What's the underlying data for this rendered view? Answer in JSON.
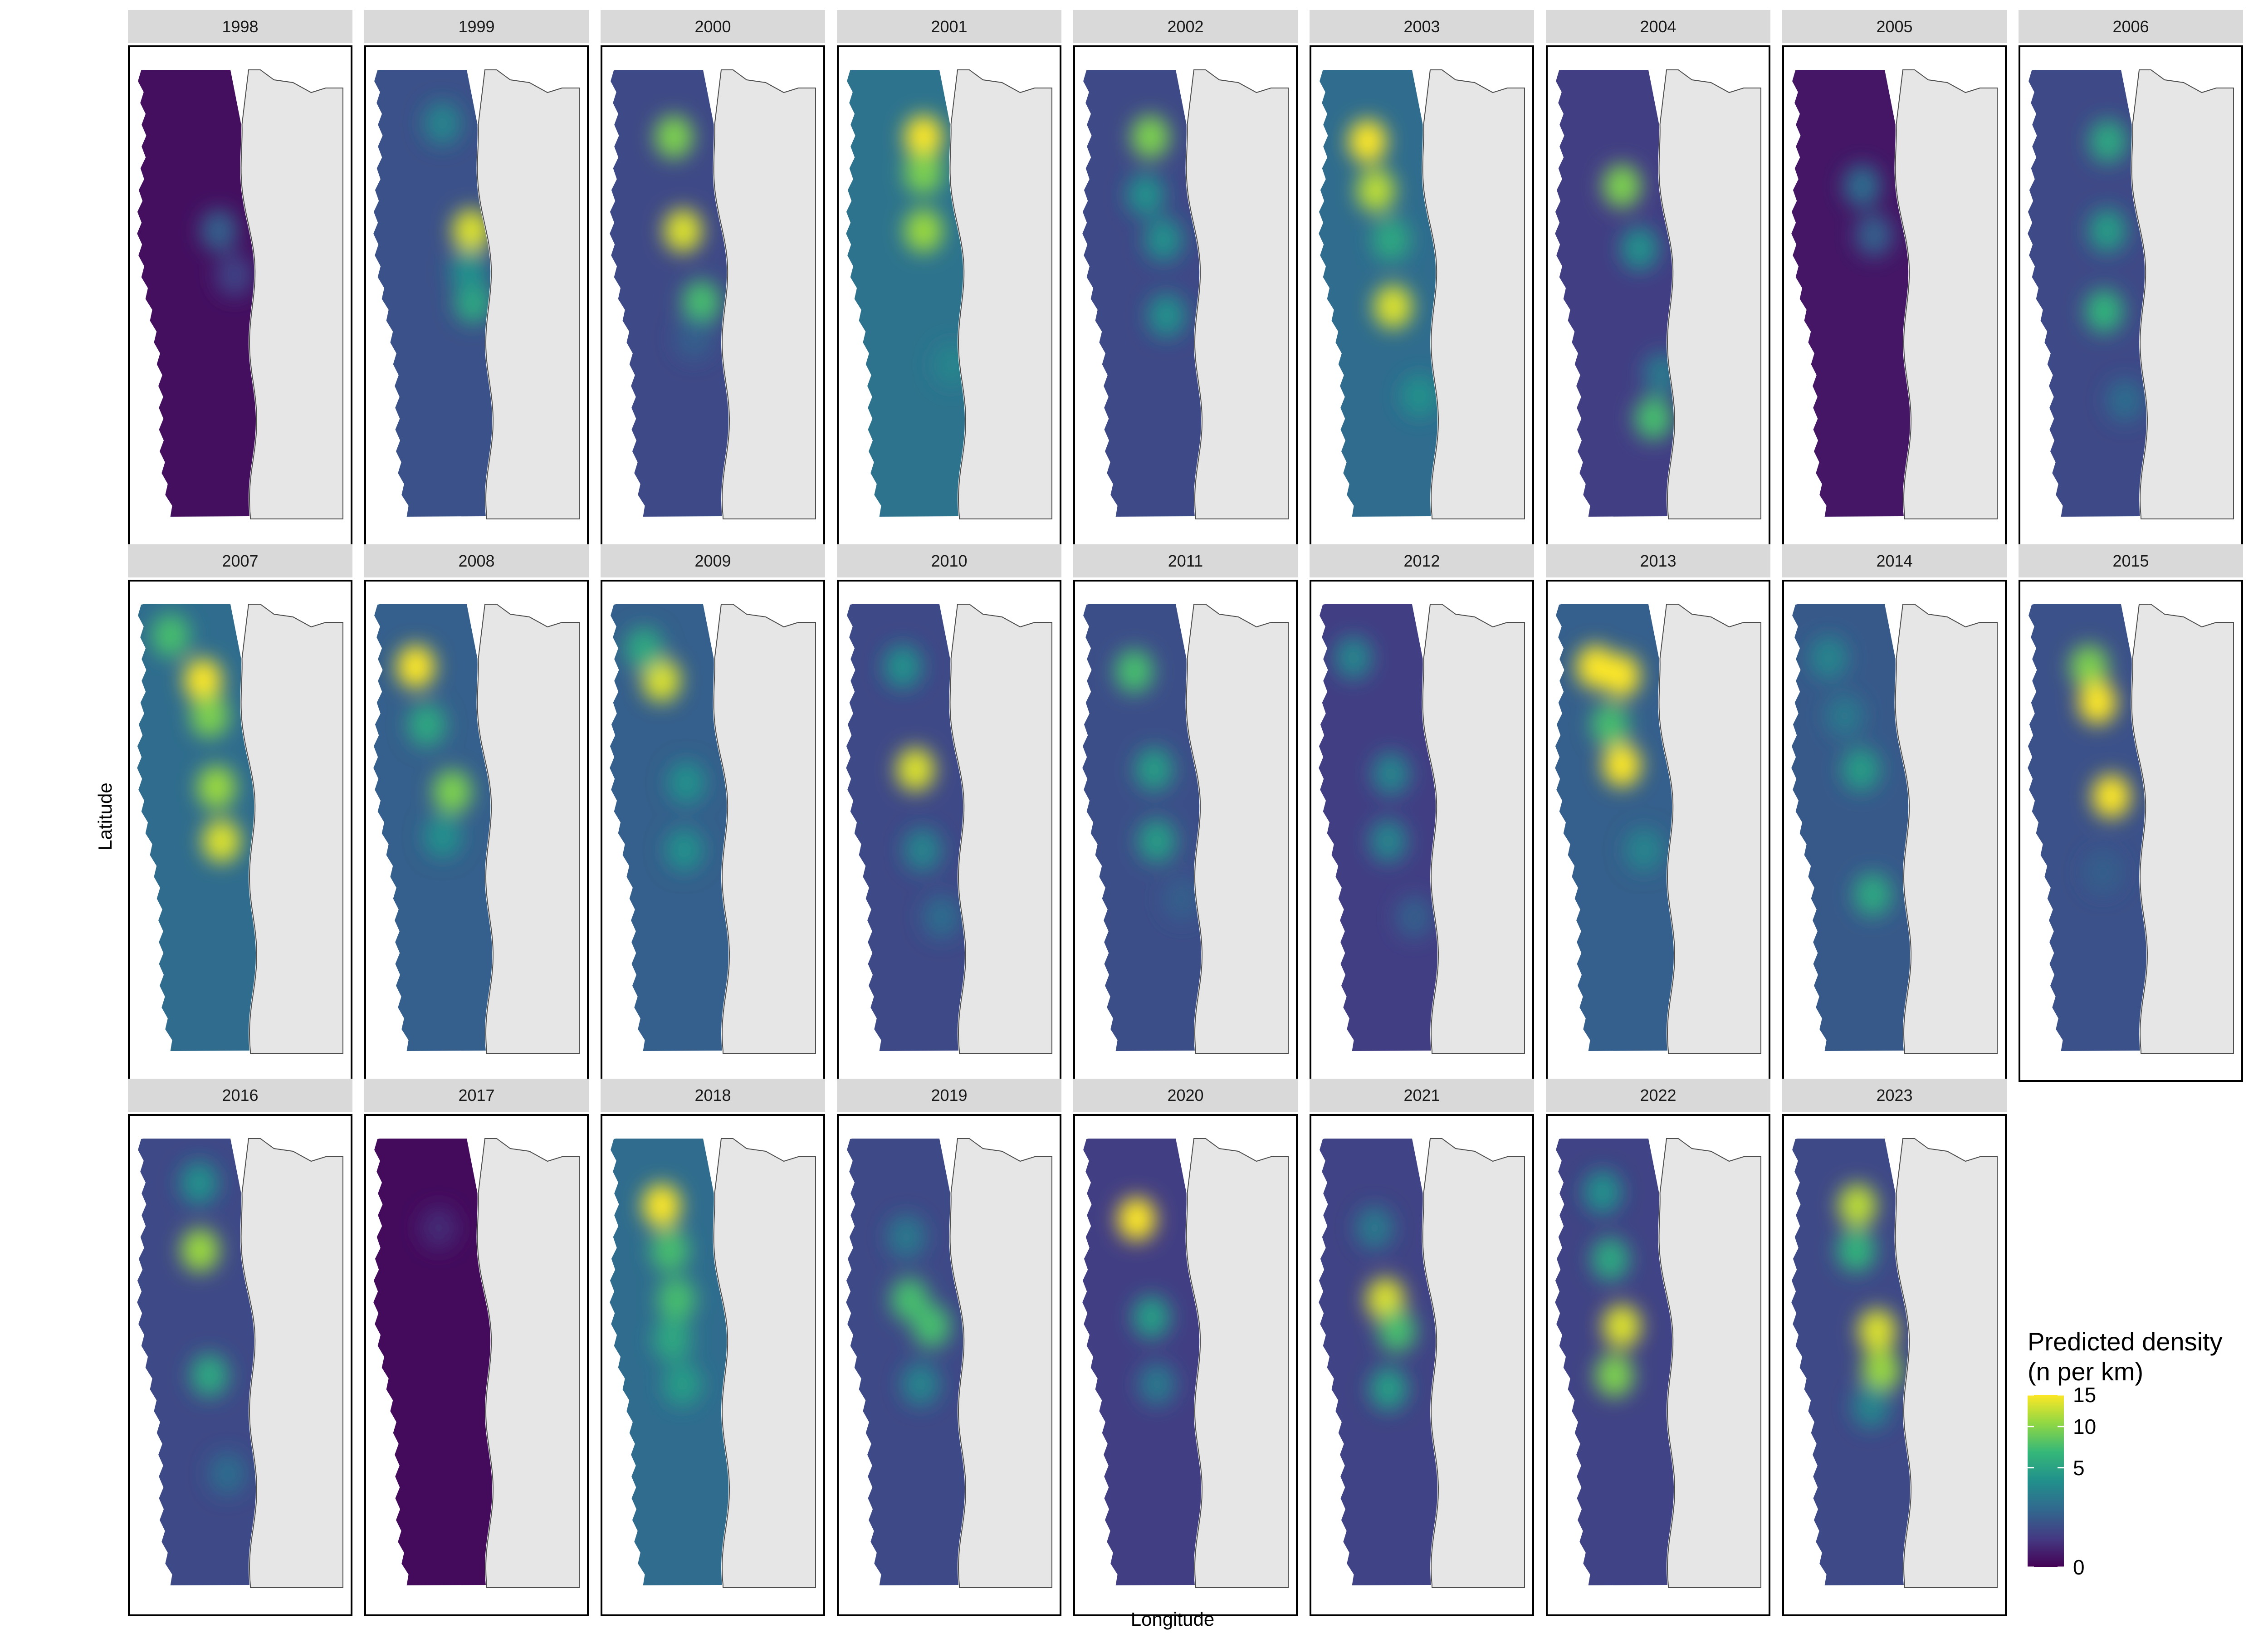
{
  "figure": {
    "x_axis_title": "Longitude",
    "y_axis_title": "Latitude"
  },
  "legend": {
    "title_lines": [
      "Predicted density",
      "(n per km)"
    ],
    "labels": [
      "15",
      "10",
      "5",
      "0"
    ],
    "label_values": [
      15,
      10,
      5,
      0
    ],
    "range": [
      0,
      15
    ],
    "colors": [
      "#440154",
      "#443a83",
      "#31688e",
      "#21908c",
      "#35b779",
      "#8fd744",
      "#fde725"
    ]
  },
  "map_style": {
    "land_fill": "#e6e6e6",
    "coastline": "#4d4d4d",
    "panel_strip_fill": "#d9d9d9"
  },
  "panels": [
    {
      "year": "1998",
      "background_level": 0.04,
      "hotspots": [
        {
          "lat_pos": 0.36,
          "lon_pos": 0.72,
          "intensity": 0.3
        },
        {
          "lat_pos": 0.46,
          "lon_pos": 0.82,
          "intensity": 0.2
        }
      ]
    },
    {
      "year": "1999",
      "background_level": 0.25,
      "hotspots": [
        {
          "lat_pos": 0.36,
          "lon_pos": 0.87,
          "intensity": 0.95
        },
        {
          "lat_pos": 0.52,
          "lon_pos": 0.85,
          "intensity": 0.6
        },
        {
          "lat_pos": 0.12,
          "lon_pos": 0.7,
          "intensity": 0.45
        },
        {
          "lat_pos": 0.45,
          "lon_pos": 0.8,
          "intensity": 0.5
        }
      ]
    },
    {
      "year": "2000",
      "background_level": 0.22,
      "hotspots": [
        {
          "lat_pos": 0.15,
          "lon_pos": 0.58,
          "intensity": 0.8
        },
        {
          "lat_pos": 0.36,
          "lon_pos": 0.64,
          "intensity": 0.95
        },
        {
          "lat_pos": 0.52,
          "lon_pos": 0.77,
          "intensity": 0.7
        },
        {
          "lat_pos": 0.6,
          "lon_pos": 0.7,
          "intensity": 0.3
        }
      ]
    },
    {
      "year": "2001",
      "background_level": 0.38,
      "hotspots": [
        {
          "lat_pos": 0.15,
          "lon_pos": 0.72,
          "intensity": 1.0
        },
        {
          "lat_pos": 0.23,
          "lon_pos": 0.73,
          "intensity": 0.8
        },
        {
          "lat_pos": 0.36,
          "lon_pos": 0.68,
          "intensity": 0.85
        },
        {
          "lat_pos": 0.66,
          "lon_pos": 0.92,
          "intensity": 0.45
        }
      ]
    },
    {
      "year": "2002",
      "background_level": 0.22,
      "hotspots": [
        {
          "lat_pos": 0.15,
          "lon_pos": 0.62,
          "intensity": 0.8
        },
        {
          "lat_pos": 0.28,
          "lon_pos": 0.58,
          "intensity": 0.5
        },
        {
          "lat_pos": 0.38,
          "lon_pos": 0.7,
          "intensity": 0.5
        },
        {
          "lat_pos": 0.55,
          "lon_pos": 0.7,
          "intensity": 0.5
        }
      ]
    },
    {
      "year": "2003",
      "background_level": 0.35,
      "hotspots": [
        {
          "lat_pos": 0.16,
          "lon_pos": 0.42,
          "intensity": 1.0
        },
        {
          "lat_pos": 0.27,
          "lon_pos": 0.52,
          "intensity": 0.9
        },
        {
          "lat_pos": 0.53,
          "lon_pos": 0.6,
          "intensity": 0.95
        },
        {
          "lat_pos": 0.38,
          "lon_pos": 0.62,
          "intensity": 0.6
        },
        {
          "lat_pos": 0.73,
          "lon_pos": 0.82,
          "intensity": 0.5
        }
      ]
    },
    {
      "year": "2004",
      "background_level": 0.18,
      "hotspots": [
        {
          "lat_pos": 0.26,
          "lon_pos": 0.62,
          "intensity": 0.8
        },
        {
          "lat_pos": 0.78,
          "lon_pos": 0.78,
          "intensity": 0.7
        },
        {
          "lat_pos": 0.4,
          "lon_pos": 0.72,
          "intensity": 0.5
        },
        {
          "lat_pos": 0.68,
          "lon_pos": 0.92,
          "intensity": 0.4
        }
      ]
    },
    {
      "year": "2005",
      "background_level": 0.06,
      "hotspots": [
        {
          "lat_pos": 0.26,
          "lon_pos": 0.66,
          "intensity": 0.35
        },
        {
          "lat_pos": 0.37,
          "lon_pos": 0.72,
          "intensity": 0.3
        }
      ]
    },
    {
      "year": "2006",
      "background_level": 0.22,
      "hotspots": [
        {
          "lat_pos": 0.16,
          "lon_pos": 0.75,
          "intensity": 0.6
        },
        {
          "lat_pos": 0.36,
          "lon_pos": 0.7,
          "intensity": 0.55
        },
        {
          "lat_pos": 0.54,
          "lon_pos": 0.62,
          "intensity": 0.65
        },
        {
          "lat_pos": 0.74,
          "lon_pos": 0.78,
          "intensity": 0.35
        }
      ]
    },
    {
      "year": "2007",
      "background_level": 0.35,
      "hotspots": [
        {
          "lat_pos": 0.17,
          "lon_pos": 0.6,
          "intensity": 1.0
        },
        {
          "lat_pos": 0.25,
          "lon_pos": 0.68,
          "intensity": 0.8
        },
        {
          "lat_pos": 0.41,
          "lon_pos": 0.67,
          "intensity": 0.85
        },
        {
          "lat_pos": 0.53,
          "lon_pos": 0.7,
          "intensity": 0.95
        },
        {
          "lat_pos": 0.07,
          "lon_pos": 0.3,
          "intensity": 0.7
        }
      ]
    },
    {
      "year": "2008",
      "background_level": 0.3,
      "hotspots": [
        {
          "lat_pos": 0.14,
          "lon_pos": 0.35,
          "intensity": 1.0
        },
        {
          "lat_pos": 0.27,
          "lon_pos": 0.48,
          "intensity": 0.6
        },
        {
          "lat_pos": 0.42,
          "lon_pos": 0.66,
          "intensity": 0.8
        },
        {
          "lat_pos": 0.52,
          "lon_pos": 0.55,
          "intensity": 0.5
        }
      ]
    },
    {
      "year": "2009",
      "background_level": 0.3,
      "hotspots": [
        {
          "lat_pos": 0.17,
          "lon_pos": 0.45,
          "intensity": 0.95
        },
        {
          "lat_pos": 0.1,
          "lon_pos": 0.3,
          "intensity": 0.6
        },
        {
          "lat_pos": 0.4,
          "lon_pos": 0.65,
          "intensity": 0.5
        },
        {
          "lat_pos": 0.55,
          "lon_pos": 0.6,
          "intensity": 0.5
        }
      ]
    },
    {
      "year": "2010",
      "background_level": 0.22,
      "hotspots": [
        {
          "lat_pos": 0.37,
          "lon_pos": 0.6,
          "intensity": 0.95
        },
        {
          "lat_pos": 0.14,
          "lon_pos": 0.5,
          "intensity": 0.5
        },
        {
          "lat_pos": 0.55,
          "lon_pos": 0.62,
          "intensity": 0.45
        },
        {
          "lat_pos": 0.7,
          "lon_pos": 0.78,
          "intensity": 0.35
        }
      ]
    },
    {
      "year": "2011",
      "background_level": 0.24,
      "hotspots": [
        {
          "lat_pos": 0.15,
          "lon_pos": 0.45,
          "intensity": 0.7
        },
        {
          "lat_pos": 0.37,
          "lon_pos": 0.62,
          "intensity": 0.55
        },
        {
          "lat_pos": 0.53,
          "lon_pos": 0.6,
          "intensity": 0.55
        },
        {
          "lat_pos": 0.66,
          "lon_pos": 0.85,
          "intensity": 0.3
        }
      ]
    },
    {
      "year": "2012",
      "background_level": 0.18,
      "hotspots": [
        {
          "lat_pos": 0.12,
          "lon_pos": 0.3,
          "intensity": 0.45
        },
        {
          "lat_pos": 0.38,
          "lon_pos": 0.62,
          "intensity": 0.45
        },
        {
          "lat_pos": 0.53,
          "lon_pos": 0.55,
          "intensity": 0.45
        },
        {
          "lat_pos": 0.7,
          "lon_pos": 0.78,
          "intensity": 0.3
        }
      ]
    },
    {
      "year": "2013",
      "background_level": 0.3,
      "hotspots": [
        {
          "lat_pos": 0.14,
          "lon_pos": 0.33,
          "intensity": 1.0
        },
        {
          "lat_pos": 0.16,
          "lon_pos": 0.6,
          "intensity": 1.0
        },
        {
          "lat_pos": 0.36,
          "lon_pos": 0.58,
          "intensity": 1.0
        },
        {
          "lat_pos": 0.27,
          "lon_pos": 0.5,
          "intensity": 0.7
        },
        {
          "lat_pos": 0.55,
          "lon_pos": 0.75,
          "intensity": 0.45
        }
      ]
    },
    {
      "year": "2014",
      "background_level": 0.28,
      "hotspots": [
        {
          "lat_pos": 0.37,
          "lon_pos": 0.6,
          "intensity": 0.55
        },
        {
          "lat_pos": 0.12,
          "lon_pos": 0.33,
          "intensity": 0.45
        },
        {
          "lat_pos": 0.65,
          "lon_pos": 0.65,
          "intensity": 0.6
        },
        {
          "lat_pos": 0.25,
          "lon_pos": 0.48,
          "intensity": 0.4
        }
      ]
    },
    {
      "year": "2015",
      "background_level": 0.25,
      "hotspots": [
        {
          "lat_pos": 0.14,
          "lon_pos": 0.55,
          "intensity": 0.8
        },
        {
          "lat_pos": 0.22,
          "lon_pos": 0.65,
          "intensity": 1.0
        },
        {
          "lat_pos": 0.43,
          "lon_pos": 0.7,
          "intensity": 1.0
        },
        {
          "lat_pos": 0.6,
          "lon_pos": 0.6,
          "intensity": 0.3
        }
      ]
    },
    {
      "year": "2016",
      "background_level": 0.22,
      "hotspots": [
        {
          "lat_pos": 0.1,
          "lon_pos": 0.62,
          "intensity": 0.5
        },
        {
          "lat_pos": 0.25,
          "lon_pos": 0.58,
          "intensity": 0.85
        },
        {
          "lat_pos": 0.53,
          "lon_pos": 0.58,
          "intensity": 0.6
        },
        {
          "lat_pos": 0.75,
          "lon_pos": 0.7,
          "intensity": 0.35
        }
      ]
    },
    {
      "year": "2017",
      "background_level": 0.03,
      "hotspots": [
        {
          "lat_pos": 0.2,
          "lon_pos": 0.6,
          "intensity": 0.12
        }
      ]
    },
    {
      "year": "2018",
      "background_level": 0.35,
      "hotspots": [
        {
          "lat_pos": 0.15,
          "lon_pos": 0.45,
          "intensity": 1.0
        },
        {
          "lat_pos": 0.25,
          "lon_pos": 0.55,
          "intensity": 0.7
        },
        {
          "lat_pos": 0.36,
          "lon_pos": 0.58,
          "intensity": 0.7
        },
        {
          "lat_pos": 0.45,
          "lon_pos": 0.5,
          "intensity": 0.6
        },
        {
          "lat_pos": 0.55,
          "lon_pos": 0.58,
          "intensity": 0.55
        }
      ]
    },
    {
      "year": "2019",
      "background_level": 0.22,
      "hotspots": [
        {
          "lat_pos": 0.36,
          "lon_pos": 0.55,
          "intensity": 0.7
        },
        {
          "lat_pos": 0.42,
          "lon_pos": 0.72,
          "intensity": 0.7
        },
        {
          "lat_pos": 0.22,
          "lon_pos": 0.55,
          "intensity": 0.4
        },
        {
          "lat_pos": 0.55,
          "lon_pos": 0.6,
          "intensity": 0.45
        }
      ]
    },
    {
      "year": "2020",
      "background_level": 0.18,
      "hotspots": [
        {
          "lat_pos": 0.18,
          "lon_pos": 0.48,
          "intensity": 1.0
        },
        {
          "lat_pos": 0.4,
          "lon_pos": 0.58,
          "intensity": 0.55
        },
        {
          "lat_pos": 0.55,
          "lon_pos": 0.6,
          "intensity": 0.4
        }
      ]
    },
    {
      "year": "2021",
      "background_level": 0.2,
      "hotspots": [
        {
          "lat_pos": 0.36,
          "lon_pos": 0.58,
          "intensity": 0.95
        },
        {
          "lat_pos": 0.43,
          "lon_pos": 0.65,
          "intensity": 0.7
        },
        {
          "lat_pos": 0.56,
          "lon_pos": 0.55,
          "intensity": 0.55
        },
        {
          "lat_pos": 0.2,
          "lon_pos": 0.5,
          "intensity": 0.4
        }
      ]
    },
    {
      "year": "2022",
      "background_level": 0.2,
      "hotspots": [
        {
          "lat_pos": 0.42,
          "lon_pos": 0.55,
          "intensity": 0.95
        },
        {
          "lat_pos": 0.53,
          "lon_pos": 0.45,
          "intensity": 0.8
        },
        {
          "lat_pos": 0.27,
          "lon_pos": 0.5,
          "intensity": 0.6
        },
        {
          "lat_pos": 0.12,
          "lon_pos": 0.45,
          "intensity": 0.5
        }
      ]
    },
    {
      "year": "2023",
      "background_level": 0.22,
      "hotspots": [
        {
          "lat_pos": 0.15,
          "lon_pos": 0.6,
          "intensity": 0.9
        },
        {
          "lat_pos": 0.25,
          "lon_pos": 0.6,
          "intensity": 0.65
        },
        {
          "lat_pos": 0.43,
          "lon_pos": 0.72,
          "intensity": 0.95
        },
        {
          "lat_pos": 0.52,
          "lon_pos": 0.75,
          "intensity": 0.85
        },
        {
          "lat_pos": 0.6,
          "lon_pos": 0.65,
          "intensity": 0.45
        }
      ]
    }
  ]
}
